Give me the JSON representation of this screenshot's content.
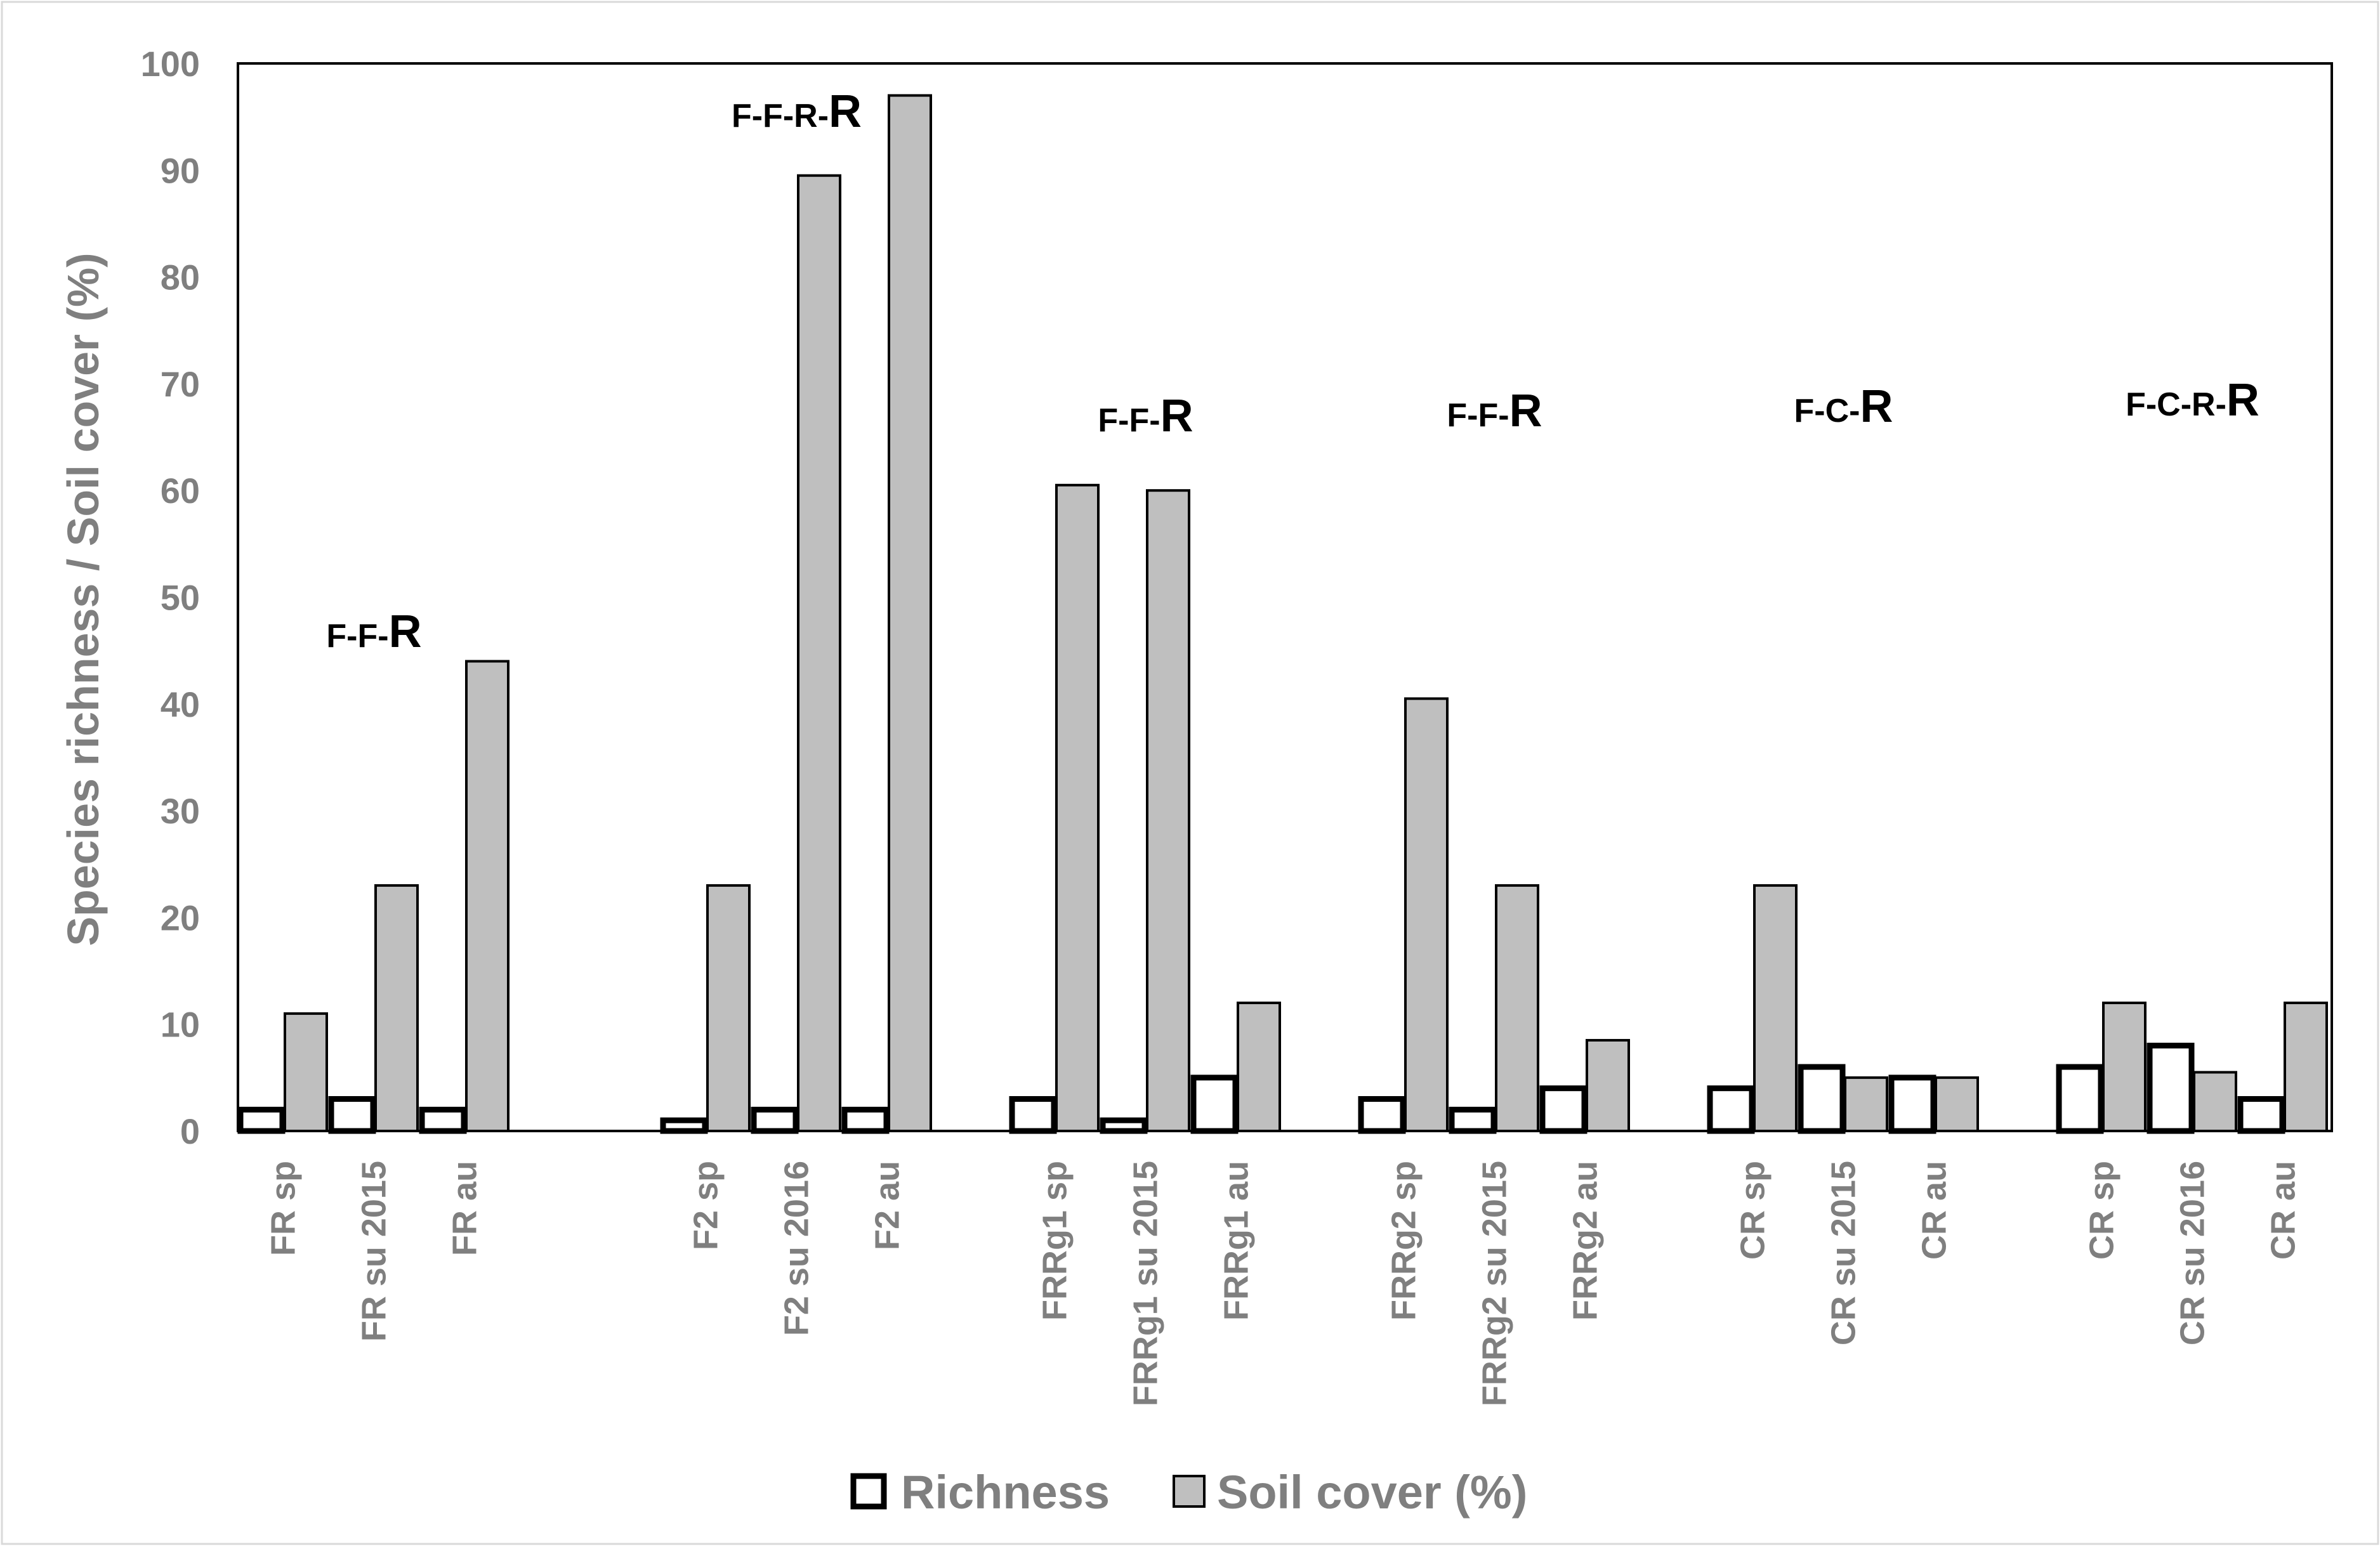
{
  "chart_data": {
    "type": "bar",
    "ylabel": "Species richness / Soil cover (%)",
    "xlabel": "",
    "ylim": [
      0,
      100
    ],
    "yticks": [
      "0",
      "10",
      "20",
      "30",
      "40",
      "50",
      "60",
      "70",
      "80",
      "90",
      "100"
    ],
    "grid": false,
    "legend": {
      "position": "bottom",
      "entries": [
        "Richness",
        "Soil cover (%)"
      ]
    },
    "series": [
      {
        "name": "Richness",
        "color": "#ffffff",
        "stroke": "#000000"
      },
      {
        "name": "Soil cover (%)",
        "color": "#bfbfbf",
        "stroke": "#000000"
      }
    ],
    "groups": [
      {
        "label_small": "F-F-",
        "label_big": "R",
        "label_value": 44,
        "categories": [
          {
            "name": "FR sp",
            "richness": 2,
            "cover": 11
          },
          {
            "name": "FR su 2015",
            "richness": 3,
            "cover": 23
          },
          {
            "name": "FR au",
            "richness": 2,
            "cover": 44
          }
        ]
      },
      {
        "label_small": "F-F-R-",
        "label_big": "R",
        "label_value": 97,
        "categories": [
          {
            "name": "F2 sp",
            "richness": 1,
            "cover": 23
          },
          {
            "name": "F2 su 2016",
            "richness": 2,
            "cover": 89.5
          },
          {
            "name": "F2 au",
            "richness": 2,
            "cover": 97
          }
        ]
      },
      {
        "label_small": "F-F-",
        "label_big": "R",
        "label_value": 60.5,
        "categories": [
          {
            "name": "FRRg1 sp",
            "richness": 3,
            "cover": 60.5
          },
          {
            "name": "FRRg1 su 2015",
            "richness": 1,
            "cover": 60
          },
          {
            "name": "FRRg1 au",
            "richness": 5,
            "cover": 12
          }
        ]
      },
      {
        "label_small": "F-F-",
        "label_big": "R",
        "label_value": 60.5,
        "categories": [
          {
            "name": "FRRg2 sp",
            "richness": 3,
            "cover": 40.5
          },
          {
            "name": "FRRg2 su 2015",
            "richness": 2,
            "cover": 23
          },
          {
            "name": "FRRg2 au",
            "richness": 4,
            "cover": 8.5
          }
        ]
      },
      {
        "label_small": "F-C-",
        "label_big": "R",
        "label_value": 60.5,
        "categories": [
          {
            "name": "CR sp",
            "richness": 4,
            "cover": 23
          },
          {
            "name": "CR su 2015",
            "richness": 6,
            "cover": 5
          },
          {
            "name": "CR au",
            "richness": 5,
            "cover": 5
          }
        ]
      },
      {
        "label_small": "F-C-R-",
        "label_big": "R",
        "label_value": 60.5,
        "categories": [
          {
            "name": "CR sp",
            "richness": 6,
            "cover": 12
          },
          {
            "name": "CR su 2016",
            "richness": 8,
            "cover": 5.5
          },
          {
            "name": "CR au",
            "richness": 3,
            "cover": 12
          }
        ]
      }
    ]
  }
}
